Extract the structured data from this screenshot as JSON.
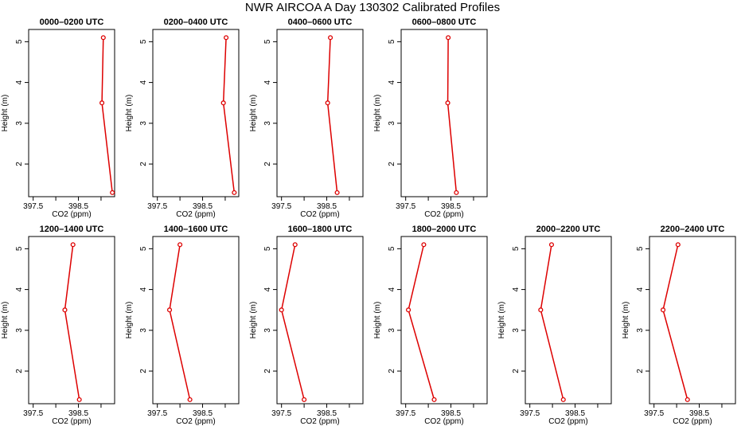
{
  "title": "NWR AIRCOA A  Day 130302  Calibrated Profiles",
  "chart_data": {
    "type": "line",
    "xlabel": "CO2 (ppm)",
    "ylabel": "Height (m)",
    "xlim": [
      397.4,
      399.3
    ],
    "ylim": [
      1.2,
      5.3
    ],
    "x_ticks": [
      397.5,
      398.0,
      398.5,
      399.0
    ],
    "x_tick_labels": [
      "397.5",
      "",
      "398.5",
      ""
    ],
    "y_ticks": [
      2,
      3,
      4,
      5
    ],
    "y_tick_labels": [
      "2",
      "3",
      "4",
      "5"
    ],
    "heights": [
      5.1,
      3.5,
      1.3
    ],
    "series_color": "#dd0000",
    "panels": [
      {
        "name": "0000–0200 UTC",
        "values": [
          399.05,
          399.02,
          399.25
        ]
      },
      {
        "name": "0200–0400 UTC",
        "values": [
          399.02,
          398.96,
          399.2
        ]
      },
      {
        "name": "0400–0600 UTC",
        "values": [
          398.58,
          398.52,
          398.73
        ]
      },
      {
        "name": "0600–0800 UTC",
        "values": [
          398.44,
          398.43,
          398.62
        ]
      },
      {
        "name": "1200–1400 UTC",
        "values": [
          398.38,
          398.2,
          398.52
        ]
      },
      {
        "name": "1400–1600 UTC",
        "values": [
          398.0,
          397.77,
          398.22
        ]
      },
      {
        "name": "1600–1800 UTC",
        "values": [
          397.8,
          397.5,
          398.0
        ]
      },
      {
        "name": "1800–2000 UTC",
        "values": [
          397.9,
          397.56,
          398.13
        ]
      },
      {
        "name": "2000–2200 UTC",
        "values": [
          397.98,
          397.74,
          398.24
        ]
      },
      {
        "name": "2200–2400 UTC",
        "values": [
          398.03,
          397.7,
          398.24
        ]
      }
    ]
  }
}
